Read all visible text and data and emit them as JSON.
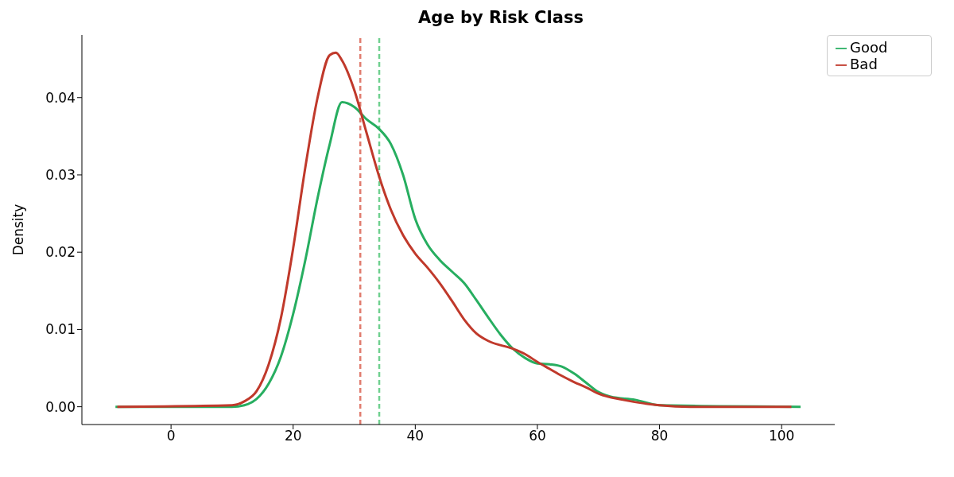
{
  "chart_data": {
    "type": "line",
    "title": "Age by Risk Class",
    "ylabel": "Density",
    "xlim": [
      -14.6,
      108.7
    ],
    "ylim": [
      -0.0023,
      0.0481
    ],
    "xticks": [
      0,
      20,
      40,
      60,
      80,
      100
    ],
    "yticks": [
      {
        "value": 0,
        "label": "0.00"
      },
      {
        "value": 0.01,
        "label": "0.01"
      },
      {
        "value": 0.02,
        "label": "0.02"
      },
      {
        "value": 0.03,
        "label": "0.03"
      },
      {
        "value": 0.04,
        "label": "0.04"
      }
    ],
    "grid": false,
    "legend": "top right",
    "marker": "none",
    "line_style": "solid",
    "series": [
      {
        "name": "Good",
        "color": "#27ae60",
        "x": [
          -9.1,
          10,
          12,
          14,
          16,
          18,
          20,
          22,
          24,
          26,
          28,
          30,
          32,
          34,
          36,
          38,
          40,
          42,
          44,
          46,
          48,
          50,
          52,
          54,
          56,
          58,
          60,
          62,
          64,
          66,
          68,
          70,
          72,
          76,
          80,
          103.1
        ],
        "values": [
          0,
          0,
          0.0002,
          0.001,
          0.003,
          0.0065,
          0.012,
          0.019,
          0.027,
          0.034,
          0.0394,
          0.0388,
          0.0372,
          0.036,
          0.034,
          0.03,
          0.0243,
          0.021,
          0.019,
          0.0175,
          0.016,
          0.0138,
          0.0115,
          0.0093,
          0.0075,
          0.0063,
          0.0056,
          0.0055,
          0.0052,
          0.0043,
          0.0031,
          0.0019,
          0.0013,
          0.0009,
          0.0002,
          0
        ]
      },
      {
        "name": "Bad",
        "color": "#c0392b",
        "x": [
          -8.8,
          10,
          12,
          14,
          16,
          18,
          20,
          22,
          24,
          26,
          27,
          28,
          30,
          32,
          34,
          36,
          38,
          40,
          42,
          44,
          46,
          48,
          50,
          52,
          56,
          58,
          60,
          62,
          64,
          66,
          68,
          70,
          74,
          80,
          85,
          101.6
        ],
        "values": [
          0,
          0.0002,
          0.0007,
          0.002,
          0.0055,
          0.0115,
          0.0205,
          0.031,
          0.04,
          0.0455,
          0.0458,
          0.0448,
          0.041,
          0.0355,
          0.03,
          0.0255,
          0.0222,
          0.0198,
          0.018,
          0.016,
          0.0137,
          0.0113,
          0.0095,
          0.0085,
          0.0075,
          0.0068,
          0.0058,
          0.0049,
          0.004,
          0.0032,
          0.0025,
          0.0017,
          0.0009,
          0.0002,
          0,
          0
        ]
      }
    ],
    "ref_lines": [
      {
        "axis": "x",
        "value": 31.0,
        "color": "#e07b6e",
        "line_style": "dashed"
      },
      {
        "axis": "x",
        "value": 34.1,
        "color": "#6fd08f",
        "line_style": "dashed"
      }
    ]
  }
}
